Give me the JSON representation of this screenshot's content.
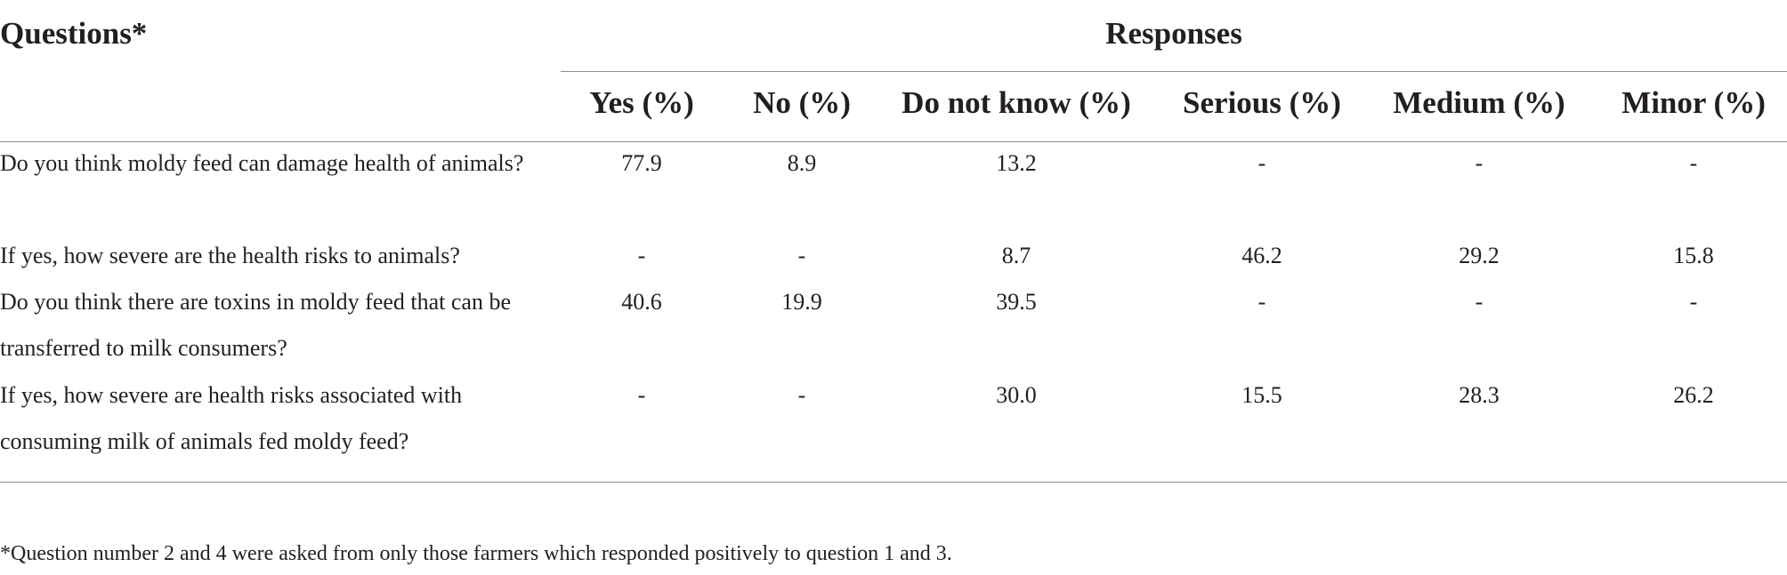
{
  "table": {
    "questions_header": "Questions*",
    "responses_header": "Responses",
    "columns": [
      "Yes (%)",
      "No (%)",
      "Do not know (%)",
      "Serious (%)",
      "Medium (%)",
      "Minor (%)"
    ],
    "rows": [
      {
        "question": "Do you think moldy feed can damage health of animals?",
        "values": [
          "77.9",
          "8.9",
          "13.2",
          "-",
          "-",
          "-"
        ]
      },
      {
        "question": "If yes, how severe are the health risks to animals?",
        "values": [
          "-",
          "-",
          "8.7",
          "46.2",
          "29.2",
          "15.8"
        ]
      },
      {
        "question": "Do you think there are toxins in moldy feed that can be transferred to milk consumers?",
        "values": [
          "40.6",
          "19.9",
          "39.5",
          "-",
          "-",
          "-"
        ]
      },
      {
        "question": "If yes, how severe are health risks associated with consuming milk of animals fed moldy feed?",
        "values": [
          "-",
          "-",
          "30.0",
          "15.5",
          "28.3",
          "26.2"
        ]
      }
    ]
  },
  "footnote": "*Question number 2 and 4 were asked from only those farmers which responded positively to question 1 and 3."
}
